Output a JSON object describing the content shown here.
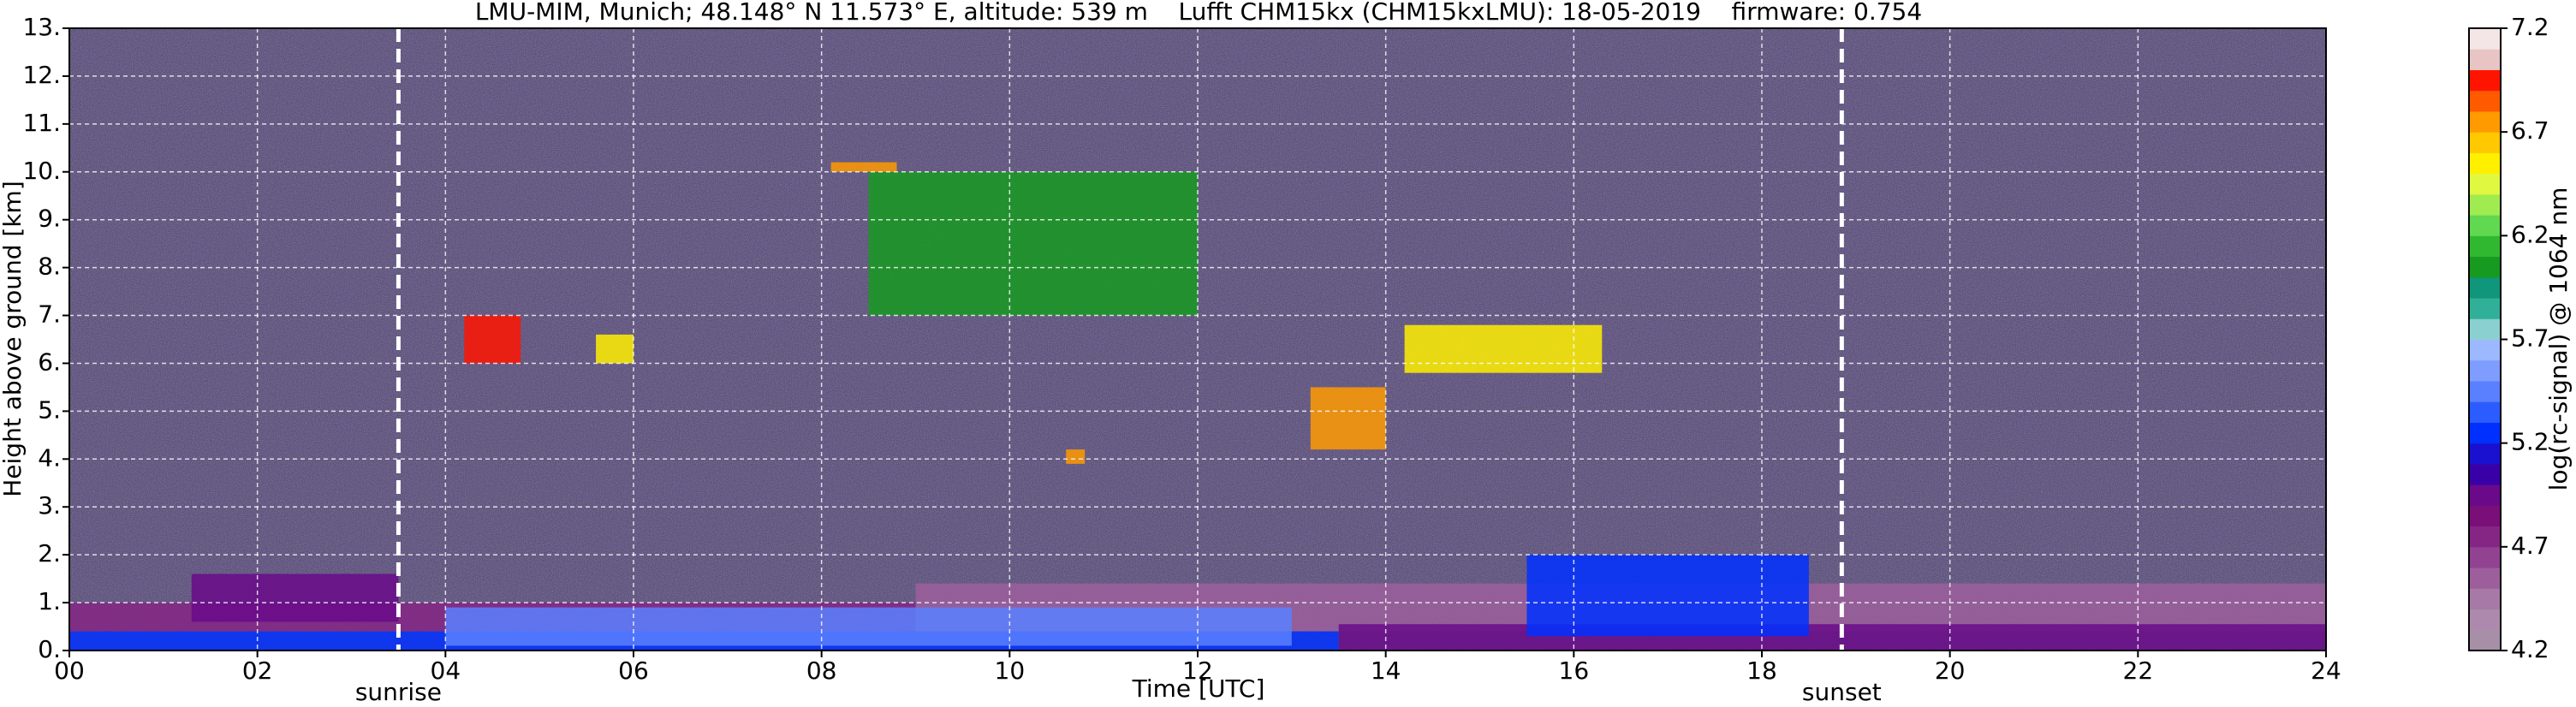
{
  "chart_data": {
    "type": "heatmap",
    "title": "LMU-MIM, Munich; 48.148° N 11.573° E, altitude: 539 m    Lufft CHM15kx (CHM15kxLMU): 18-05-2019    firmware: 0.754",
    "xlabel": "Time [UTC]",
    "ylabel": "Height above ground [km]",
    "colorbar_label": "log(rc-signal) @ 1064 nm",
    "xlim": [
      0,
      24
    ],
    "xticks": [
      {
        "value": 0,
        "label": "00"
      },
      {
        "value": 2,
        "label": "02"
      },
      {
        "value": 4,
        "label": "04"
      },
      {
        "value": 6,
        "label": "06"
      },
      {
        "value": 8,
        "label": "08"
      },
      10,
      12,
      14,
      16,
      18,
      20,
      22,
      24
    ],
    "ylim": [
      0,
      13
    ],
    "yticks": [
      {
        "value": 0,
        "label": "0."
      },
      {
        "value": 1,
        "label": "1."
      },
      {
        "value": 2,
        "label": "2."
      },
      {
        "value": 3,
        "label": "3."
      },
      {
        "value": 4,
        "label": "4."
      },
      {
        "value": 5,
        "label": "5."
      },
      {
        "value": 6,
        "label": "6."
      },
      {
        "value": 7,
        "label": "7."
      },
      {
        "value": 8,
        "label": "8."
      },
      {
        "value": 9,
        "label": "9."
      },
      {
        "value": 10,
        "label": "10."
      },
      {
        "value": 11,
        "label": "11."
      },
      {
        "value": 12,
        "label": "12."
      },
      {
        "value": 13,
        "label": "13."
      }
    ],
    "grid": true,
    "clim": [
      4.2,
      7.2
    ],
    "cticks": [
      4.2,
      4.7,
      5.2,
      5.7,
      6.2,
      6.7,
      7.2
    ],
    "colors": [
      "#a78fa7",
      "#ad8aad",
      "#a679a6",
      "#9c5f9c",
      "#914291",
      "#852685",
      "#7a0f7a",
      "#6a0a8a",
      "#3a00a8",
      "#1a10d0",
      "#0030ff",
      "#2a5cff",
      "#5a80ff",
      "#7f9cff",
      "#9cb8ff",
      "#8ad0d0",
      "#30b098",
      "#10967a",
      "#169a20",
      "#30b830",
      "#60d850",
      "#a0ec50",
      "#e0f840",
      "#fff000",
      "#ffc800",
      "#ff9a00",
      "#ff5a00",
      "#ff1400",
      "#e8c4c4",
      "#f4e6e6"
    ],
    "markers": [
      {
        "label": "sunrise",
        "x": 3.5
      },
      {
        "label": "sunset",
        "x": 18.85
      }
    ],
    "regions": [
      {
        "x": [
          0,
          9
        ],
        "y": [
          0.4,
          1.0
        ],
        "value": 4.8
      },
      {
        "x": [
          9,
          24
        ],
        "y": [
          0.4,
          1.4
        ],
        "value": 4.6
      },
      {
        "x": [
          1.3,
          3.5
        ],
        "y": [
          0.6,
          1.6
        ],
        "value": 5.0
      },
      {
        "x": [
          0,
          13.5
        ],
        "y": [
          0,
          0.4
        ],
        "value": 5.3
      },
      {
        "x": [
          4,
          13
        ],
        "y": [
          0.1,
          0.9
        ],
        "value": 5.5
      },
      {
        "x": [
          13.5,
          24
        ],
        "y": [
          0,
          0.55
        ],
        "value": 4.9
      },
      {
        "x": [
          15.5,
          18.5
        ],
        "y": [
          0.3,
          2.0
        ],
        "value": 5.2
      },
      {
        "x": [
          8.5,
          12
        ],
        "y": [
          7,
          10
        ],
        "value": 6.0
      },
      {
        "x": [
          13.2,
          14
        ],
        "y": [
          4.2,
          5.5
        ],
        "value": 6.8
      },
      {
        "x": [
          14.2,
          16.3
        ],
        "y": [
          5.8,
          6.8
        ],
        "value": 6.6
      },
      {
        "x": [
          4.2,
          4.8
        ],
        "y": [
          6.0,
          7.0
        ],
        "value": 6.9
      },
      {
        "x": [
          5.6,
          6.0
        ],
        "y": [
          6.0,
          6.6
        ],
        "value": 6.6
      },
      {
        "x": [
          8.1,
          8.8
        ],
        "y": [
          10.0,
          10.2
        ],
        "value": 6.8
      },
      {
        "x": [
          10.6,
          10.8
        ],
        "y": [
          3.9,
          4.2
        ],
        "value": 6.7
      }
    ]
  }
}
